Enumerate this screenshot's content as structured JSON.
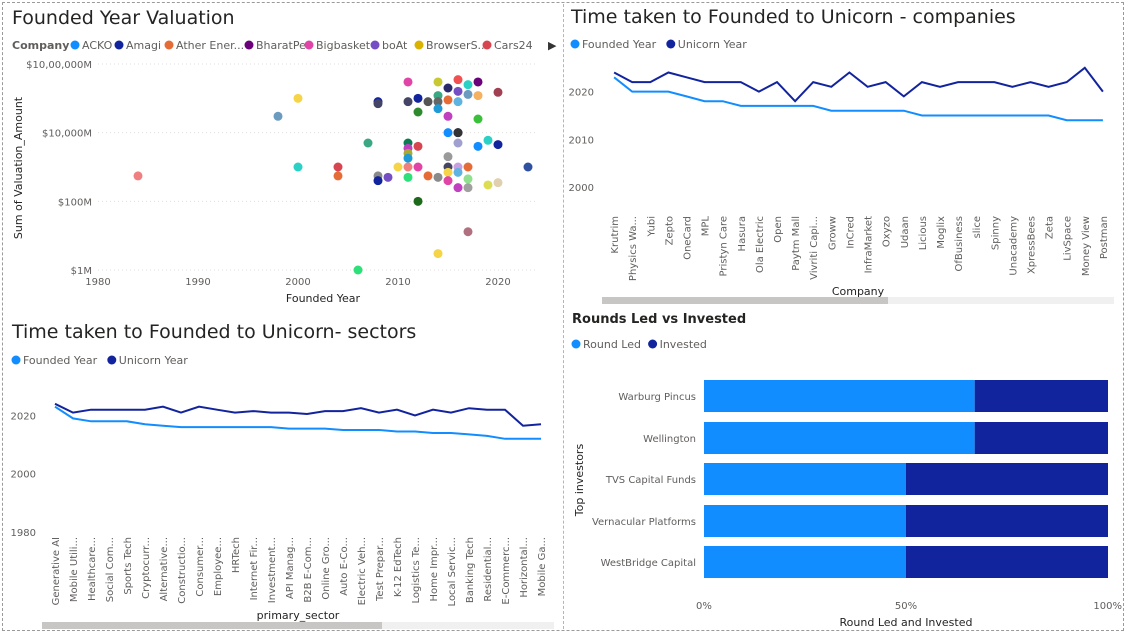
{
  "chart_data": [
    {
      "type": "scatter",
      "title": "Founded Year Valuation",
      "xlabel": "Founded Year",
      "ylabel": "Sum of Valuation_Amount",
      "xlim": [
        1980,
        2024
      ],
      "x_ticks": [
        "1980",
        "1990",
        "2000",
        "2010",
        "2020"
      ],
      "y_scale": "log",
      "y_ticks": [
        "$10,00,000M",
        "$10,000M",
        "$100M",
        "$1M"
      ],
      "legend": {
        "title": "Company",
        "placement": "top",
        "items": [
          {
            "name": "ACKO",
            "color": "#118dff"
          },
          {
            "name": "Amagi",
            "color": "#12239e"
          },
          {
            "name": "Ather Ener...",
            "color": "#e66c37"
          },
          {
            "name": "BharatPe",
            "color": "#6b007b"
          },
          {
            "name": "Bigbasket",
            "color": "#e044a7"
          },
          {
            "name": "boAt",
            "color": "#744ec2"
          },
          {
            "name": "BrowserS...",
            "color": "#d9b300"
          },
          {
            "name": "Cars24",
            "color": "#d64550"
          }
        ]
      },
      "points": [
        {
          "x": 1984,
          "y": 550,
          "c": "#f08080"
        },
        {
          "x": 1998,
          "y": 30000,
          "c": "#6c9bc0"
        },
        {
          "x": 2000,
          "y": 100000,
          "c": "#f5d547"
        },
        {
          "x": 2000,
          "y": 1000,
          "c": "#2bd1c5"
        },
        {
          "x": 2006,
          "y": 1,
          "c": "#2ee07a"
        },
        {
          "x": 2004,
          "y": 1000,
          "c": "#d64550"
        },
        {
          "x": 2004,
          "y": 550,
          "c": "#e66c37"
        },
        {
          "x": 2007,
          "y": 5000,
          "c": "#3aa882"
        },
        {
          "x": 2008,
          "y": 80000,
          "c": "#12239e"
        },
        {
          "x": 2008,
          "y": 70000,
          "c": "#444466"
        },
        {
          "x": 2008,
          "y": 550,
          "c": "#8a8a8a"
        },
        {
          "x": 2008,
          "y": 400,
          "c": "#12239e"
        },
        {
          "x": 2009,
          "y": 500,
          "c": "#744ec2"
        },
        {
          "x": 2010,
          "y": 1000,
          "c": "#f5d547"
        },
        {
          "x": 2011,
          "y": 300000,
          "c": "#e044a7"
        },
        {
          "x": 2011,
          "y": 80000,
          "c": "#444466"
        },
        {
          "x": 2011,
          "y": 5000,
          "c": "#0a7e52"
        },
        {
          "x": 2011,
          "y": 3500,
          "c": "#c040c0"
        },
        {
          "x": 2011,
          "y": 2500,
          "c": "#aaaa33"
        },
        {
          "x": 2011,
          "y": 1800,
          "c": "#1f9ad6"
        },
        {
          "x": 2011,
          "y": 1000,
          "c": "#f08080"
        },
        {
          "x": 2011,
          "y": 500,
          "c": "#2ee07a"
        },
        {
          "x": 2012,
          "y": 100000,
          "c": "#12239e"
        },
        {
          "x": 2012,
          "y": 40000,
          "c": "#2d8a2d"
        },
        {
          "x": 2012,
          "y": 4000,
          "c": "#d64550"
        },
        {
          "x": 2012,
          "y": 1000,
          "c": "#e044a7"
        },
        {
          "x": 2012,
          "y": 100,
          "c": "#1d6a1d"
        },
        {
          "x": 2013,
          "y": 80000,
          "c": "#555555"
        },
        {
          "x": 2013,
          "y": 550,
          "c": "#e66c37"
        },
        {
          "x": 2014,
          "y": 300000,
          "c": "#c8c832"
        },
        {
          "x": 2014,
          "y": 120000,
          "c": "#3aa882"
        },
        {
          "x": 2014,
          "y": 80000,
          "c": "#666666"
        },
        {
          "x": 2014,
          "y": 50000,
          "c": "#1f9ad6"
        },
        {
          "x": 2014,
          "y": 500,
          "c": "#8a8a8a"
        },
        {
          "x": 2014,
          "y": 3,
          "c": "#f5d547"
        },
        {
          "x": 2015,
          "y": 200000,
          "c": "#2a2a6a"
        },
        {
          "x": 2015,
          "y": 90000,
          "c": "#e66c37"
        },
        {
          "x": 2015,
          "y": 30000,
          "c": "#c040c0"
        },
        {
          "x": 2015,
          "y": 10000,
          "c": "#118dff"
        },
        {
          "x": 2015,
          "y": 2000,
          "c": "#9a9a9a"
        },
        {
          "x": 2015,
          "y": 1000,
          "c": "#444466"
        },
        {
          "x": 2015,
          "y": 700,
          "c": "#f5d547"
        },
        {
          "x": 2015,
          "y": 400,
          "c": "#e044a7"
        },
        {
          "x": 2016,
          "y": 350000,
          "c": "#f05050"
        },
        {
          "x": 2016,
          "y": 160000,
          "c": "#744ec2"
        },
        {
          "x": 2016,
          "y": 80000,
          "c": "#5fb3e0"
        },
        {
          "x": 2016,
          "y": 10000,
          "c": "#12239e"
        },
        {
          "x": 2016,
          "y": 10000,
          "c": "#333333"
        },
        {
          "x": 2016,
          "y": 5000,
          "c": "#a0a0d0"
        },
        {
          "x": 2016,
          "y": 1000,
          "c": "#c8a0e0"
        },
        {
          "x": 2016,
          "y": 700,
          "c": "#5fb3e0"
        },
        {
          "x": 2016,
          "y": 250,
          "c": "#c040c0"
        },
        {
          "x": 2017,
          "y": 250000,
          "c": "#2bd1c5"
        },
        {
          "x": 2017,
          "y": 130000,
          "c": "#6c9bc0"
        },
        {
          "x": 2017,
          "y": 1000,
          "c": "#e66c37"
        },
        {
          "x": 2017,
          "y": 450,
          "c": "#8fe08f"
        },
        {
          "x": 2017,
          "y": 250,
          "c": "#a0a0a0"
        },
        {
          "x": 2017,
          "y": 13,
          "c": "#b07080"
        },
        {
          "x": 2018,
          "y": 300000,
          "c": "#6b007b"
        },
        {
          "x": 2018,
          "y": 120000,
          "c": "#f5b060"
        },
        {
          "x": 2018,
          "y": 25000,
          "c": "#3ac03a"
        },
        {
          "x": 2018,
          "y": 4000,
          "c": "#118dff"
        },
        {
          "x": 2019,
          "y": 6000,
          "c": "#2bd1c5"
        },
        {
          "x": 2019,
          "y": 300,
          "c": "#dddd55"
        },
        {
          "x": 2020,
          "y": 150000,
          "c": "#a04050"
        },
        {
          "x": 2020,
          "y": 4500,
          "c": "#12239e"
        },
        {
          "x": 2020,
          "y": 350,
          "c": "#e0d0b0"
        },
        {
          "x": 2023,
          "y": 1000,
          "c": "#3050a0"
        }
      ]
    },
    {
      "type": "line",
      "title": "Time taken to Founded to Unicorn - companies",
      "xlabel": "Company",
      "ylabel": "",
      "ylim": [
        2000,
        2026
      ],
      "y_ticks": [
        "2020",
        "2010",
        "2000"
      ],
      "legend_placement": "top-left",
      "categories": [
        "Krutrim",
        "Physics Wa...",
        "Yubi",
        "Zepto",
        "OneCard",
        "MPL",
        "Pristyn Care",
        "Hasura",
        "Ola Electric",
        "Open",
        "Paytm Mall",
        "Vivriti Capi...",
        "Groww",
        "InCred",
        "InfraMarket",
        "Oxyzo",
        "Udaan",
        "Licious",
        "Moglix",
        "OfBusiness",
        "slice",
        "Spinny",
        "Unacademy",
        "XpressBees",
        "Zeta",
        "LivSpace",
        "Money View",
        "Postman"
      ],
      "series": [
        {
          "name": "Founded Year",
          "color": "#118dff",
          "values": [
            2023,
            2020,
            2020,
            2020,
            2019,
            2018,
            2018,
            2017,
            2017,
            2017,
            2017,
            2017,
            2016,
            2016,
            2016,
            2016,
            2016,
            2015,
            2015,
            2015,
            2015,
            2015,
            2015,
            2015,
            2015,
            2014,
            2014,
            2014
          ]
        },
        {
          "name": "Unicorn Year",
          "color": "#12239e",
          "values": [
            2024,
            2022,
            2022,
            2024,
            2023,
            2022,
            2022,
            2022,
            2020,
            2022,
            2018,
            2022,
            2021,
            2024,
            2021,
            2022,
            2019,
            2022,
            2021,
            2022,
            2022,
            2022,
            2021,
            2022,
            2021,
            2022,
            2025,
            2020
          ]
        }
      ]
    },
    {
      "type": "line",
      "title": "Time taken to Founded to Unicorn- sectors",
      "xlabel": "primary_sector",
      "ylabel": "",
      "ylim": [
        1980,
        2026
      ],
      "y_ticks": [
        "2020",
        "2000",
        "1980"
      ],
      "legend_placement": "top-left",
      "categories": [
        "Generative AI",
        "Mobile Utili...",
        "Healthcare...",
        "Social Com...",
        "Sports Tech",
        "Cryptocurr...",
        "Alternative...",
        "Constructio...",
        "Consumer...",
        "Employee...",
        "HRTech",
        "Internet Fir...",
        "Investment...",
        "API Manag...",
        "B2B E-Com...",
        "Online Gro...",
        "Auto E-Co...",
        "Electric Veh...",
        "Test Prepar...",
        "K-12 EdTech",
        "Logistics Te...",
        "Home Impr...",
        "Local Servic...",
        "Banking Tech",
        "Residential...",
        "E-Commerc...",
        "Horizontal...",
        "Mobile Ga..."
      ],
      "series": [
        {
          "name": "Founded Year",
          "color": "#118dff",
          "values": [
            2023,
            2019,
            2018,
            2018,
            2018,
            2017,
            2016.5,
            2016,
            2016,
            2016,
            2016,
            2016,
            2016,
            2015.5,
            2015.5,
            2015.5,
            2015,
            2015,
            2015,
            2014.5,
            2014.5,
            2014,
            2014,
            2013.5,
            2013,
            2012,
            2012,
            2012
          ]
        },
        {
          "name": "Unicorn Year",
          "color": "#12239e",
          "values": [
            2024,
            2021,
            2022,
            2022,
            2022,
            2022,
            2023,
            2021,
            2023,
            2022,
            2021,
            2021.5,
            2021,
            2021,
            2020.5,
            2021.5,
            2021.5,
            2022.5,
            2021,
            2022,
            2020,
            2022,
            2021,
            2022.5,
            2022,
            2022,
            2016.5,
            2017
          ]
        }
      ]
    },
    {
      "type": "bar",
      "orientation": "horizontal",
      "stacked": "100%",
      "title": "Rounds Led vs Invested",
      "xlabel": "Round Led and Invested",
      "ylabel": "Top investors",
      "x_ticks": [
        "0%",
        "50%",
        "100%"
      ],
      "legend_placement": "top-left",
      "categories": [
        "Warburg Pincus",
        "Wellington",
        "TVS Capital Funds",
        "Vernacular Platforms",
        "WestBridge Capital"
      ],
      "series": [
        {
          "name": "Round Led",
          "color": "#118dff",
          "values": [
            67,
            67,
            50,
            50,
            50
          ]
        },
        {
          "name": "Invested",
          "color": "#12239e",
          "values": [
            33,
            33,
            50,
            50,
            50
          ]
        }
      ]
    }
  ]
}
